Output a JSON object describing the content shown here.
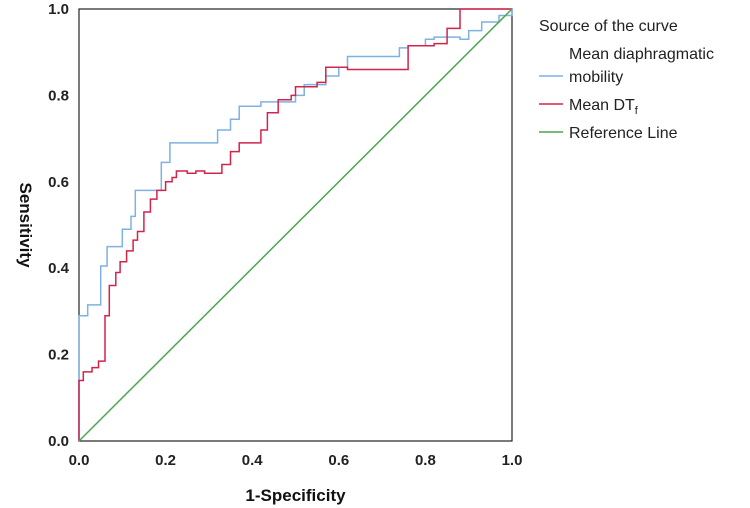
{
  "chart_data": {
    "type": "line",
    "title": "",
    "xlabel": "1-Specificity",
    "ylabel": "Sensitivity",
    "xlim": [
      0,
      1
    ],
    "ylim": [
      0,
      1
    ],
    "x_ticks": [
      "0.0",
      "0.2",
      "0.4",
      "0.6",
      "0.8",
      "1.0"
    ],
    "y_ticks": [
      "0.0",
      "0.2",
      "0.4",
      "0.6",
      "0.8",
      "1.0"
    ],
    "grid": false,
    "legend": {
      "title": "Source of the curve",
      "placement": "right",
      "entries": [
        {
          "label_lines": [
            "Mean diaphragmatic",
            "mobility"
          ],
          "color": "#7fb1e3",
          "swatch_line": 1
        },
        {
          "label_main": "Mean DT",
          "label_sub": "f",
          "color": "#d1244b"
        },
        {
          "label_main": "Reference Line",
          "color": "#4aa64f"
        }
      ]
    },
    "series": [
      {
        "name": "Mean diaphragmatic mobility",
        "color": "#7fb1e3",
        "x": [
          0,
          0,
          0.02,
          0.02,
          0.05,
          0.05,
          0.065,
          0.065,
          0.1,
          0.1,
          0.12,
          0.12,
          0.13,
          0.13,
          0.19,
          0.19,
          0.21,
          0.21,
          0.32,
          0.32,
          0.35,
          0.35,
          0.37,
          0.37,
          0.42,
          0.42,
          0.5,
          0.5,
          0.52,
          0.52,
          0.57,
          0.57,
          0.6,
          0.6,
          0.62,
          0.62,
          0.74,
          0.74,
          0.76,
          0.76,
          0.8,
          0.8,
          0.82,
          0.82,
          0.88,
          0.88,
          0.9,
          0.9,
          0.93,
          0.93,
          0.97,
          0.97,
          1.0,
          1.0
        ],
        "y": [
          0,
          0.29,
          0.29,
          0.315,
          0.315,
          0.405,
          0.405,
          0.45,
          0.45,
          0.49,
          0.49,
          0.52,
          0.52,
          0.58,
          0.58,
          0.645,
          0.645,
          0.69,
          0.69,
          0.72,
          0.72,
          0.745,
          0.745,
          0.775,
          0.775,
          0.785,
          0.785,
          0.8,
          0.8,
          0.825,
          0.825,
          0.845,
          0.845,
          0.865,
          0.865,
          0.89,
          0.89,
          0.91,
          0.91,
          0.915,
          0.915,
          0.93,
          0.93,
          0.935,
          0.935,
          0.93,
          0.93,
          0.95,
          0.95,
          0.97,
          0.97,
          0.985,
          0.985,
          1.0
        ]
      },
      {
        "name": "Mean DTf",
        "color": "#d1244b",
        "x": [
          0,
          0,
          0.01,
          0.01,
          0.03,
          0.03,
          0.045,
          0.045,
          0.06,
          0.06,
          0.07,
          0.07,
          0.085,
          0.085,
          0.095,
          0.095,
          0.11,
          0.11,
          0.125,
          0.125,
          0.135,
          0.135,
          0.15,
          0.15,
          0.165,
          0.165,
          0.18,
          0.18,
          0.2,
          0.2,
          0.215,
          0.215,
          0.225,
          0.225,
          0.25,
          0.25,
          0.27,
          0.27,
          0.29,
          0.29,
          0.33,
          0.33,
          0.35,
          0.35,
          0.37,
          0.37,
          0.42,
          0.42,
          0.435,
          0.435,
          0.46,
          0.46,
          0.49,
          0.49,
          0.5,
          0.5,
          0.55,
          0.55,
          0.57,
          0.57,
          0.62,
          0.62,
          0.76,
          0.76,
          0.82,
          0.82,
          0.85,
          0.85,
          0.88,
          0.88,
          1.0
        ],
        "y": [
          0,
          0.14,
          0.14,
          0.16,
          0.16,
          0.17,
          0.17,
          0.185,
          0.185,
          0.29,
          0.29,
          0.36,
          0.36,
          0.39,
          0.39,
          0.415,
          0.415,
          0.44,
          0.44,
          0.465,
          0.465,
          0.485,
          0.485,
          0.53,
          0.53,
          0.56,
          0.56,
          0.58,
          0.58,
          0.6,
          0.6,
          0.61,
          0.61,
          0.625,
          0.625,
          0.62,
          0.62,
          0.625,
          0.625,
          0.62,
          0.62,
          0.64,
          0.64,
          0.67,
          0.67,
          0.69,
          0.69,
          0.72,
          0.72,
          0.76,
          0.76,
          0.79,
          0.79,
          0.8,
          0.8,
          0.82,
          0.82,
          0.83,
          0.83,
          0.865,
          0.865,
          0.86,
          0.86,
          0.915,
          0.915,
          0.92,
          0.92,
          0.955,
          0.955,
          1.0,
          1.0
        ]
      },
      {
        "name": "Reference Line",
        "color": "#4aa64f",
        "x": [
          0,
          1
        ],
        "y": [
          0,
          1
        ]
      }
    ]
  }
}
